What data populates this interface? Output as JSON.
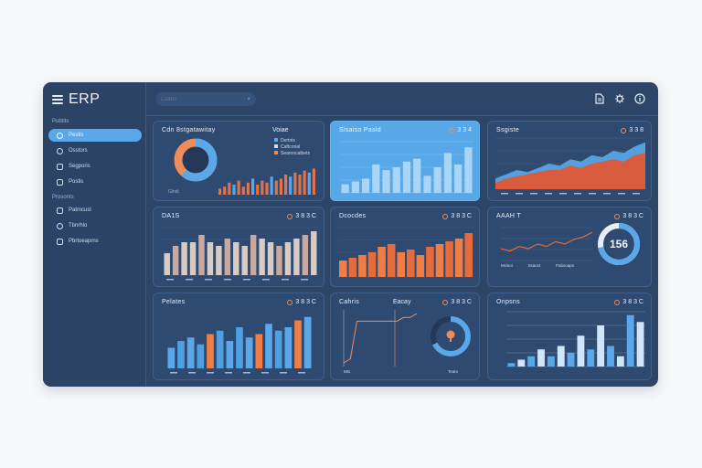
{
  "app": {
    "brand": "ERP"
  },
  "sidebar": {
    "section1_label": "Pubtits",
    "section2_label": "Prosonts",
    "items": [
      {
        "label": "Pestis",
        "icon": "dashboard-icon",
        "active": true
      },
      {
        "label": "Osstors",
        "icon": "users-icon",
        "active": false
      },
      {
        "label": "Segporis",
        "icon": "reports-icon",
        "active": false
      },
      {
        "label": "Postis",
        "icon": "documents-icon",
        "active": false
      },
      {
        "label": "Patmcusl",
        "icon": "calendar-icon",
        "active": false
      },
      {
        "label": "Tbnrhlo",
        "icon": "tag-icon",
        "active": false
      },
      {
        "label": "Pbrtoeaprns",
        "icon": "folder-icon",
        "active": false
      }
    ]
  },
  "topbar": {
    "search_placeholder": "Caidts",
    "search_icon": "×",
    "icons": [
      "document-icon",
      "settings-icon",
      "info-icon"
    ]
  },
  "cards": [
    {
      "id": "c1",
      "title": "Cdn 8stgatawitay",
      "meta": "Voiae",
      "legend": [
        "Dertnis",
        "Caftcrnial",
        "Searoncalbets"
      ],
      "axis_label": "Glndi",
      "colors": {
        "donut": "#5aa8ea",
        "accent": "#f08c5a"
      }
    },
    {
      "id": "c2",
      "title": "Sisaiso Pasld",
      "meta": "3 3 4"
    },
    {
      "id": "c3",
      "title": "Ssgiste",
      "meta": "3 3 8"
    },
    {
      "id": "c4",
      "title": "DA1S",
      "meta": "3 8 3 C"
    },
    {
      "id": "c5",
      "title": "Dcocdes",
      "meta": "3 8 3 C"
    },
    {
      "id": "c6",
      "title": "AAAH T",
      "meta": "3 8 3 C",
      "gauge_value": "156",
      "axis_labels": [
        "Mcisoi",
        "Ssauct",
        "Pabsoaps"
      ]
    },
    {
      "id": "c7",
      "title": "Pelates",
      "meta": "3 8 3 C"
    },
    {
      "id": "c8",
      "title": "Cahris",
      "subtitle": "Eacay",
      "meta": "3 8 3 C",
      "axis_labels": [
        "Mts",
        "Teato"
      ]
    },
    {
      "id": "c9",
      "title": "Onpsns",
      "meta": "3 8 3 C"
    }
  ],
  "chart_data": [
    {
      "card": "c1",
      "type": "bar",
      "donut_share": 0.62,
      "values": [
        3,
        4,
        6,
        5,
        7,
        4,
        6,
        8,
        5,
        7,
        6,
        9,
        7,
        8,
        10,
        9,
        11,
        10,
        12,
        11,
        13
      ]
    },
    {
      "card": "c2",
      "type": "bar",
      "values": [
        3,
        4,
        5,
        10,
        8,
        9,
        11,
        12,
        6,
        9,
        14,
        10,
        16
      ]
    },
    {
      "card": "c3",
      "type": "area",
      "series": [
        {
          "values": [
            5,
            7,
            9,
            8,
            10,
            12,
            11,
            14,
            13,
            16,
            15,
            18,
            17,
            20,
            22
          ],
          "color": "#5aa8ea"
        },
        {
          "values": [
            3,
            5,
            6,
            7,
            8,
            9,
            9,
            11,
            10,
            12,
            13,
            14,
            13,
            16,
            17
          ],
          "color": "#d75b3c"
        }
      ]
    },
    {
      "card": "c4",
      "type": "bar",
      "values": [
        6,
        8,
        9,
        9,
        11,
        9,
        8,
        10,
        9,
        8,
        11,
        10,
        9,
        8,
        9,
        10,
        11,
        12
      ]
    },
    {
      "card": "c5",
      "type": "bar",
      "values": [
        6,
        7,
        8,
        9,
        11,
        12,
        9,
        10,
        8,
        11,
        12,
        13,
        14,
        16
      ]
    },
    {
      "card": "c6",
      "type": "line",
      "gauge_share": 0.72,
      "values": [
        5,
        4,
        6,
        5,
        7,
        6,
        8,
        7,
        9,
        10,
        12
      ]
    },
    {
      "card": "c7",
      "type": "bar",
      "values": [
        6,
        8,
        9,
        7,
        10,
        11,
        8,
        12,
        9,
        10,
        13,
        11,
        12,
        14,
        15
      ]
    },
    {
      "card": "c8",
      "type": "line",
      "donut_share": 0.68,
      "values": [
        1,
        2,
        12,
        12,
        12,
        12,
        12,
        12,
        12,
        13,
        13,
        14
      ]
    },
    {
      "card": "c9",
      "type": "bar",
      "values": [
        1,
        2,
        3,
        5,
        3,
        6,
        4,
        9,
        5,
        12,
        6,
        3,
        15,
        13
      ]
    }
  ]
}
